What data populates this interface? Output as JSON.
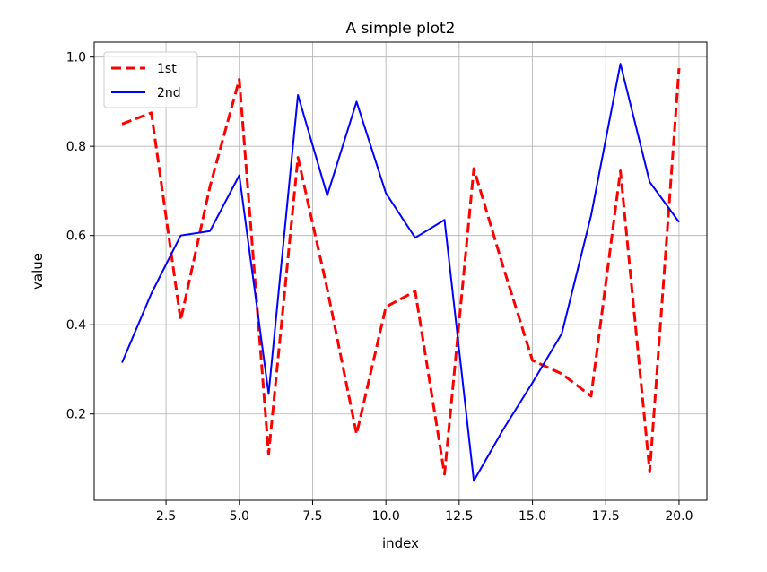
{
  "chart_data": {
    "type": "line",
    "title": "A simple plot2",
    "xlabel": "index",
    "ylabel": "value",
    "xlim": [
      0.05,
      20.95
    ],
    "ylim": [
      0.0065,
      1.0335
    ],
    "xticks": [
      2.5,
      5.0,
      7.5,
      10.0,
      12.5,
      15.0,
      17.5,
      20.0
    ],
    "xtick_labels": [
      "2.5",
      "5.0",
      "7.5",
      "10.0",
      "12.5",
      "15.0",
      "17.5",
      "20.0"
    ],
    "yticks": [
      0.2,
      0.4,
      0.6,
      0.8,
      1.0
    ],
    "ytick_labels": [
      "0.2",
      "0.4",
      "0.6",
      "0.8",
      "1.0"
    ],
    "grid": true,
    "legend_position": "top-left",
    "x": [
      1,
      2,
      3,
      4,
      5,
      6,
      7,
      8,
      9,
      10,
      11,
      12,
      13,
      14,
      15,
      16,
      17,
      18,
      19,
      20
    ],
    "series": [
      {
        "name": "1st",
        "color": "#ff0000",
        "line_style": "dashed",
        "values": [
          0.85,
          0.875,
          0.41,
          0.71,
          0.95,
          0.11,
          0.775,
          0.48,
          0.155,
          0.44,
          0.475,
          0.065,
          0.75,
          0.53,
          0.32,
          0.29,
          0.24,
          0.745,
          0.07,
          0.975
        ]
      },
      {
        "name": "2nd",
        "color": "#0000ff",
        "line_style": "solid",
        "values": [
          0.315,
          0.47,
          0.6,
          0.61,
          0.735,
          0.245,
          0.915,
          0.69,
          0.9,
          0.695,
          0.595,
          0.635,
          0.05,
          0.165,
          0.27,
          0.38,
          0.645,
          0.985,
          0.72,
          0.63
        ]
      }
    ]
  }
}
